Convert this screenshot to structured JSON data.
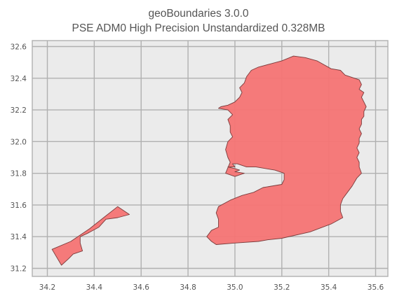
{
  "chart_data": {
    "type": "map",
    "title": "geoBoundaries 3.0.0",
    "subtitle": "PSE ADM0 High Precision Unstandardized 0.328MB",
    "xlabel": "",
    "ylabel": "",
    "xlim": [
      34.2,
      35.6
    ],
    "ylim": [
      31.2,
      32.6
    ],
    "x_ticks": [
      "34.2",
      "34.4",
      "34.6",
      "34.8",
      "35.0",
      "35.2",
      "35.4",
      "35.6"
    ],
    "y_ticks": [
      "31.2",
      "31.4",
      "31.6",
      "31.8",
      "32.0",
      "32.2",
      "32.4",
      "32.6"
    ],
    "grid": true,
    "background_color": "#ebebeb",
    "grid_color": "#b0b0b0",
    "fill_color": "#f67474",
    "edge_color": "#7a3b3b",
    "regions": [
      {
        "polygon": [
          [
            35.47,
            32.42
          ],
          [
            35.53,
            32.39
          ],
          [
            35.54,
            32.36
          ],
          [
            35.53,
            32.33
          ],
          [
            35.55,
            32.31
          ],
          [
            35.54,
            32.28
          ],
          [
            35.55,
            32.25
          ],
          [
            35.56,
            32.22
          ],
          [
            35.55,
            32.19
          ],
          [
            35.55,
            32.16
          ],
          [
            35.54,
            32.14
          ],
          [
            35.54,
            32.11
          ],
          [
            35.53,
            32.08
          ],
          [
            35.54,
            32.05
          ],
          [
            35.53,
            32.02
          ],
          [
            35.53,
            31.99
          ],
          [
            35.52,
            31.96
          ],
          [
            35.53,
            31.93
          ],
          [
            35.52,
            31.9
          ],
          [
            35.53,
            31.87
          ],
          [
            35.53,
            31.84
          ],
          [
            35.54,
            31.8
          ],
          [
            35.52,
            31.77
          ],
          [
            35.5,
            31.72
          ],
          [
            35.48,
            31.68
          ],
          [
            35.46,
            31.64
          ],
          [
            35.45,
            31.6
          ],
          [
            35.45,
            31.56
          ],
          [
            35.46,
            31.52
          ],
          [
            35.41,
            31.48
          ],
          [
            35.32,
            31.43
          ],
          [
            35.2,
            31.39
          ],
          [
            35.14,
            31.38
          ],
          [
            35.1,
            31.37
          ],
          [
            35.0,
            31.36
          ],
          [
            34.92,
            31.35
          ],
          [
            34.9,
            31.37
          ],
          [
            34.88,
            31.4
          ],
          [
            34.9,
            31.44
          ],
          [
            34.93,
            31.46
          ],
          [
            34.93,
            31.51
          ],
          [
            34.92,
            31.55
          ],
          [
            34.93,
            31.59
          ],
          [
            34.98,
            31.63
          ],
          [
            35.03,
            31.66
          ],
          [
            35.08,
            31.68
          ],
          [
            35.12,
            31.71
          ],
          [
            35.2,
            31.73
          ],
          [
            35.21,
            31.76
          ],
          [
            35.21,
            31.8
          ],
          [
            35.17,
            31.82
          ],
          [
            35.09,
            31.84
          ],
          [
            35.05,
            31.84
          ],
          [
            35.03,
            31.85
          ],
          [
            35.01,
            31.86
          ],
          [
            34.99,
            31.86
          ],
          [
            35.0,
            31.84
          ],
          [
            34.97,
            31.84
          ],
          [
            35.0,
            31.83
          ],
          [
            35.02,
            31.82
          ],
          [
            35.0,
            31.81
          ],
          [
            35.04,
            31.8
          ],
          [
            35.0,
            31.78
          ],
          [
            34.96,
            31.8
          ],
          [
            34.98,
            31.87
          ],
          [
            34.97,
            31.9
          ],
          [
            34.96,
            31.95
          ],
          [
            34.97,
            32.0
          ],
          [
            34.99,
            32.03
          ],
          [
            34.98,
            32.06
          ],
          [
            34.98,
            32.1
          ],
          [
            34.97,
            32.14
          ],
          [
            34.99,
            32.17
          ],
          [
            34.97,
            32.2
          ],
          [
            34.93,
            32.21
          ],
          [
            34.94,
            32.22
          ],
          [
            34.97,
            32.23
          ],
          [
            35.0,
            32.25
          ],
          [
            35.02,
            32.28
          ],
          [
            35.03,
            32.31
          ],
          [
            35.02,
            32.34
          ],
          [
            35.04,
            32.37
          ],
          [
            35.05,
            32.41
          ],
          [
            35.07,
            32.45
          ],
          [
            35.1,
            32.47
          ],
          [
            35.15,
            32.49
          ],
          [
            35.2,
            32.51
          ],
          [
            35.25,
            32.54
          ],
          [
            35.3,
            32.53
          ],
          [
            35.35,
            32.51
          ],
          [
            35.41,
            32.46
          ],
          [
            35.45,
            32.45
          ],
          [
            35.47,
            32.42
          ]
        ]
      },
      {
        "polygon": [
          [
            34.22,
            31.32
          ],
          [
            34.3,
            31.37
          ],
          [
            34.38,
            31.45
          ],
          [
            34.44,
            31.52
          ],
          [
            34.5,
            31.59
          ],
          [
            34.55,
            31.54
          ],
          [
            34.5,
            31.52
          ],
          [
            34.45,
            31.51
          ],
          [
            34.42,
            31.46
          ],
          [
            34.37,
            31.42
          ],
          [
            34.34,
            31.4
          ],
          [
            34.34,
            31.36
          ],
          [
            34.35,
            31.31
          ],
          [
            34.31,
            31.29
          ],
          [
            34.29,
            31.26
          ],
          [
            34.26,
            31.22
          ],
          [
            34.22,
            31.32
          ]
        ]
      }
    ]
  }
}
